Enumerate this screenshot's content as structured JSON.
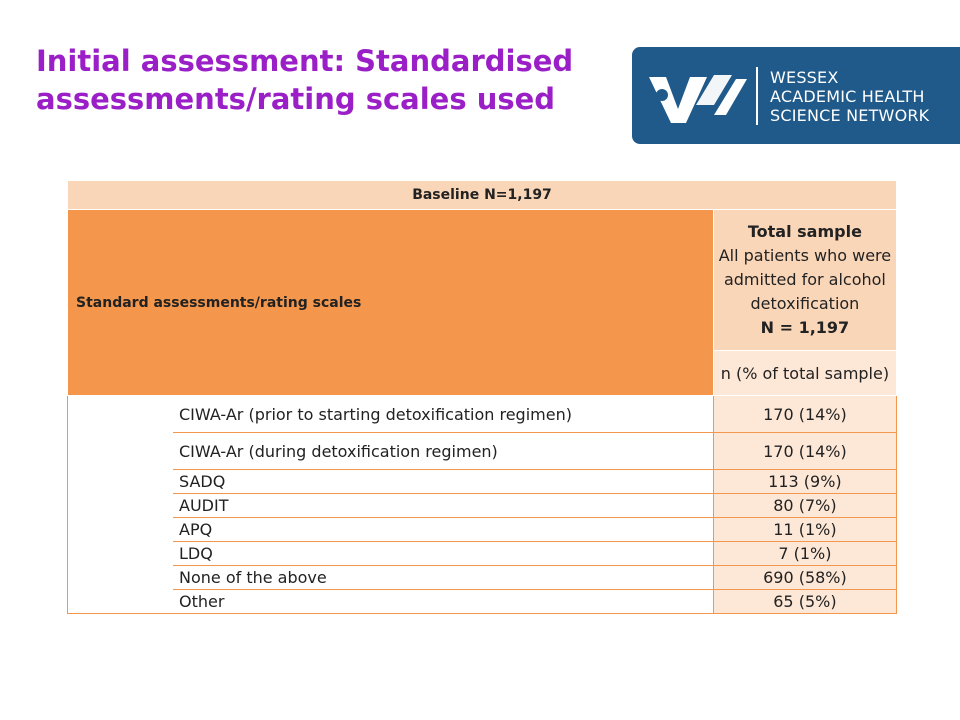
{
  "title": {
    "line1": "Initial assessment: Standardised",
    "line2": "assessments/rating scales used"
  },
  "logo": {
    "line1": "WESSEX",
    "line2": "ACADEMIC HEALTH",
    "line3": "SCIENCE NETWORK",
    "bg_color": "#1f5a8a"
  },
  "table": {
    "baseline": "Baseline N=1,197",
    "row_header": "Standard assessments/rating scales",
    "col_header": {
      "line1": "Total sample",
      "line2": "All patients who were",
      "line3": "admitted for alcohol",
      "line4": "detoxification",
      "line5": "N = 1,197"
    },
    "subheader": "n (% of total sample)",
    "rows": [
      {
        "label": "CIWA-Ar (prior to starting detoxification regimen)",
        "value": "170 (14%)"
      },
      {
        "label": "CIWA-Ar (during detoxification regimen)",
        "value": "170 (14%)"
      },
      {
        "label": "SADQ",
        "value": "113 (9%)"
      },
      {
        "label": "AUDIT",
        "value": "80 (7%)"
      },
      {
        "label": "APQ",
        "value": "11 (1%)"
      },
      {
        "label": "LDQ",
        "value": "7 (1%)"
      },
      {
        "label": "None of the above",
        "value": "690 (58%)"
      },
      {
        "label": "Other",
        "value": "65 (5%)"
      }
    ]
  },
  "colors": {
    "title": "#9b1fc7",
    "header_dark": "#f4974c",
    "header_light": "#fad6b9",
    "cell_light": "#fde7d6"
  }
}
